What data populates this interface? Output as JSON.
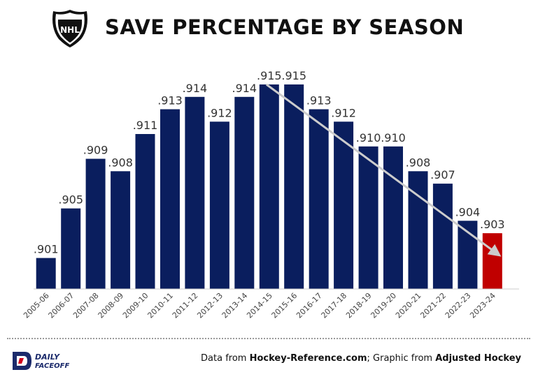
{
  "header": {
    "title": "SAVE PERCENTAGE BY SEASON",
    "logo_text": "NHL"
  },
  "footer": {
    "source_prefix": "Data from ",
    "source_site": "Hockey-Reference.com",
    "source_mid": "; Graphic from ",
    "source_author": "Adjusted Hockey",
    "brand_line1": "DAILY",
    "brand_line2": "FACEOFF"
  },
  "colors": {
    "bar": "#0a1e5e",
    "highlight_bar": "#c00000",
    "trend_arrow": "#cccccc",
    "df_brand": "#1b2a6b",
    "df_accent": "#d0001b"
  },
  "chart_data": {
    "type": "bar",
    "title": "SAVE PERCENTAGE BY SEASON",
    "xlabel": "",
    "ylabel": "",
    "ylim": [
      0.8985,
      0.9165
    ],
    "grid": false,
    "legend": "none",
    "categories": [
      "2005-06",
      "2006-07",
      "2007-08",
      "2008-09",
      "2009-10",
      "2010-11",
      "2011-12",
      "2012-13",
      "2013-14",
      "2014-15",
      "2015-16",
      "2016-17",
      "2017-18",
      "2018-19",
      "2019-20",
      "2020-21",
      "2021-22",
      "2022-23",
      "2023-24"
    ],
    "values": [
      0.901,
      0.905,
      0.909,
      0.908,
      0.911,
      0.913,
      0.914,
      0.912,
      0.914,
      0.915,
      0.915,
      0.913,
      0.912,
      0.91,
      0.91,
      0.908,
      0.907,
      0.904,
      0.903
    ],
    "labels": [
      ".901",
      ".905",
      ".909",
      ".908",
      ".911",
      ".913",
      ".914",
      ".912",
      ".914",
      ".915",
      ".915",
      ".913",
      ".912",
      ".910",
      ".910",
      ".908",
      ".907",
      ".904",
      ".903"
    ],
    "highlight_category": "2023-24",
    "trend_arrow": {
      "from": "2014-15",
      "from_value": 0.915,
      "to": "2023-24",
      "to_value": 0.9025
    }
  }
}
